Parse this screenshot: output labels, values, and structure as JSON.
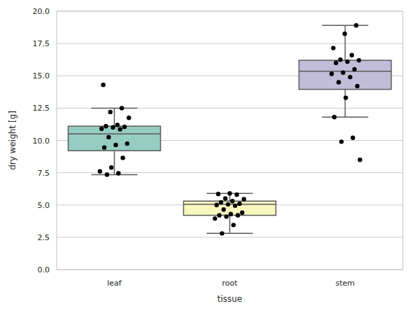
{
  "chart_data": {
    "type": "box",
    "x_label": "tissue",
    "y_label": "dry weight [g]",
    "categories": [
      "leaf",
      "root",
      "stem"
    ],
    "colors": [
      "#96cdc3",
      "#f8f7bf",
      "#c0bcd9"
    ],
    "stats": {
      "whislo": [
        7.35,
        2.8,
        11.8
      ],
      "q1": [
        9.2,
        4.2,
        13.95
      ],
      "median": [
        10.5,
        5.05,
        15.35
      ],
      "q3": [
        11.1,
        5.3,
        16.2
      ],
      "whishi": [
        12.5,
        5.9,
        18.9
      ]
    },
    "points": [
      [
        14.3,
        12.5,
        12.2,
        11.75,
        11.2,
        11.1,
        11.05,
        11.0,
        10.9,
        10.85,
        10.25,
        9.75,
        9.65,
        9.45,
        8.65,
        7.9,
        7.6,
        7.45,
        7.35
      ],
      [
        5.9,
        5.85,
        5.8,
        5.5,
        5.45,
        5.3,
        5.2,
        5.1,
        5.05,
        5.0,
        4.95,
        4.65,
        4.4,
        4.3,
        4.2,
        4.2,
        4.1,
        3.95,
        3.45,
        2.8
      ],
      [
        18.9,
        18.25,
        17.15,
        16.6,
        16.25,
        16.2,
        16.1,
        16.0,
        15.5,
        15.25,
        15.15,
        14.9,
        14.5,
        14.2,
        13.3,
        11.8,
        10.2,
        9.9,
        8.5
      ]
    ],
    "ylim": [
      0,
      20
    ],
    "yticks": [
      {
        "value": 0,
        "label": "0.0"
      },
      {
        "value": 2.5,
        "label": "2.5"
      },
      {
        "value": 5,
        "label": "5.0"
      },
      {
        "value": 7.5,
        "label": "7.5"
      },
      {
        "value": 10,
        "label": "10.0"
      },
      {
        "value": 12.5,
        "label": "12.5"
      },
      {
        "value": 15,
        "label": "15.0"
      },
      {
        "value": 17.5,
        "label": "17.5"
      },
      {
        "value": 20,
        "label": "20.0"
      }
    ],
    "grid": true
  }
}
